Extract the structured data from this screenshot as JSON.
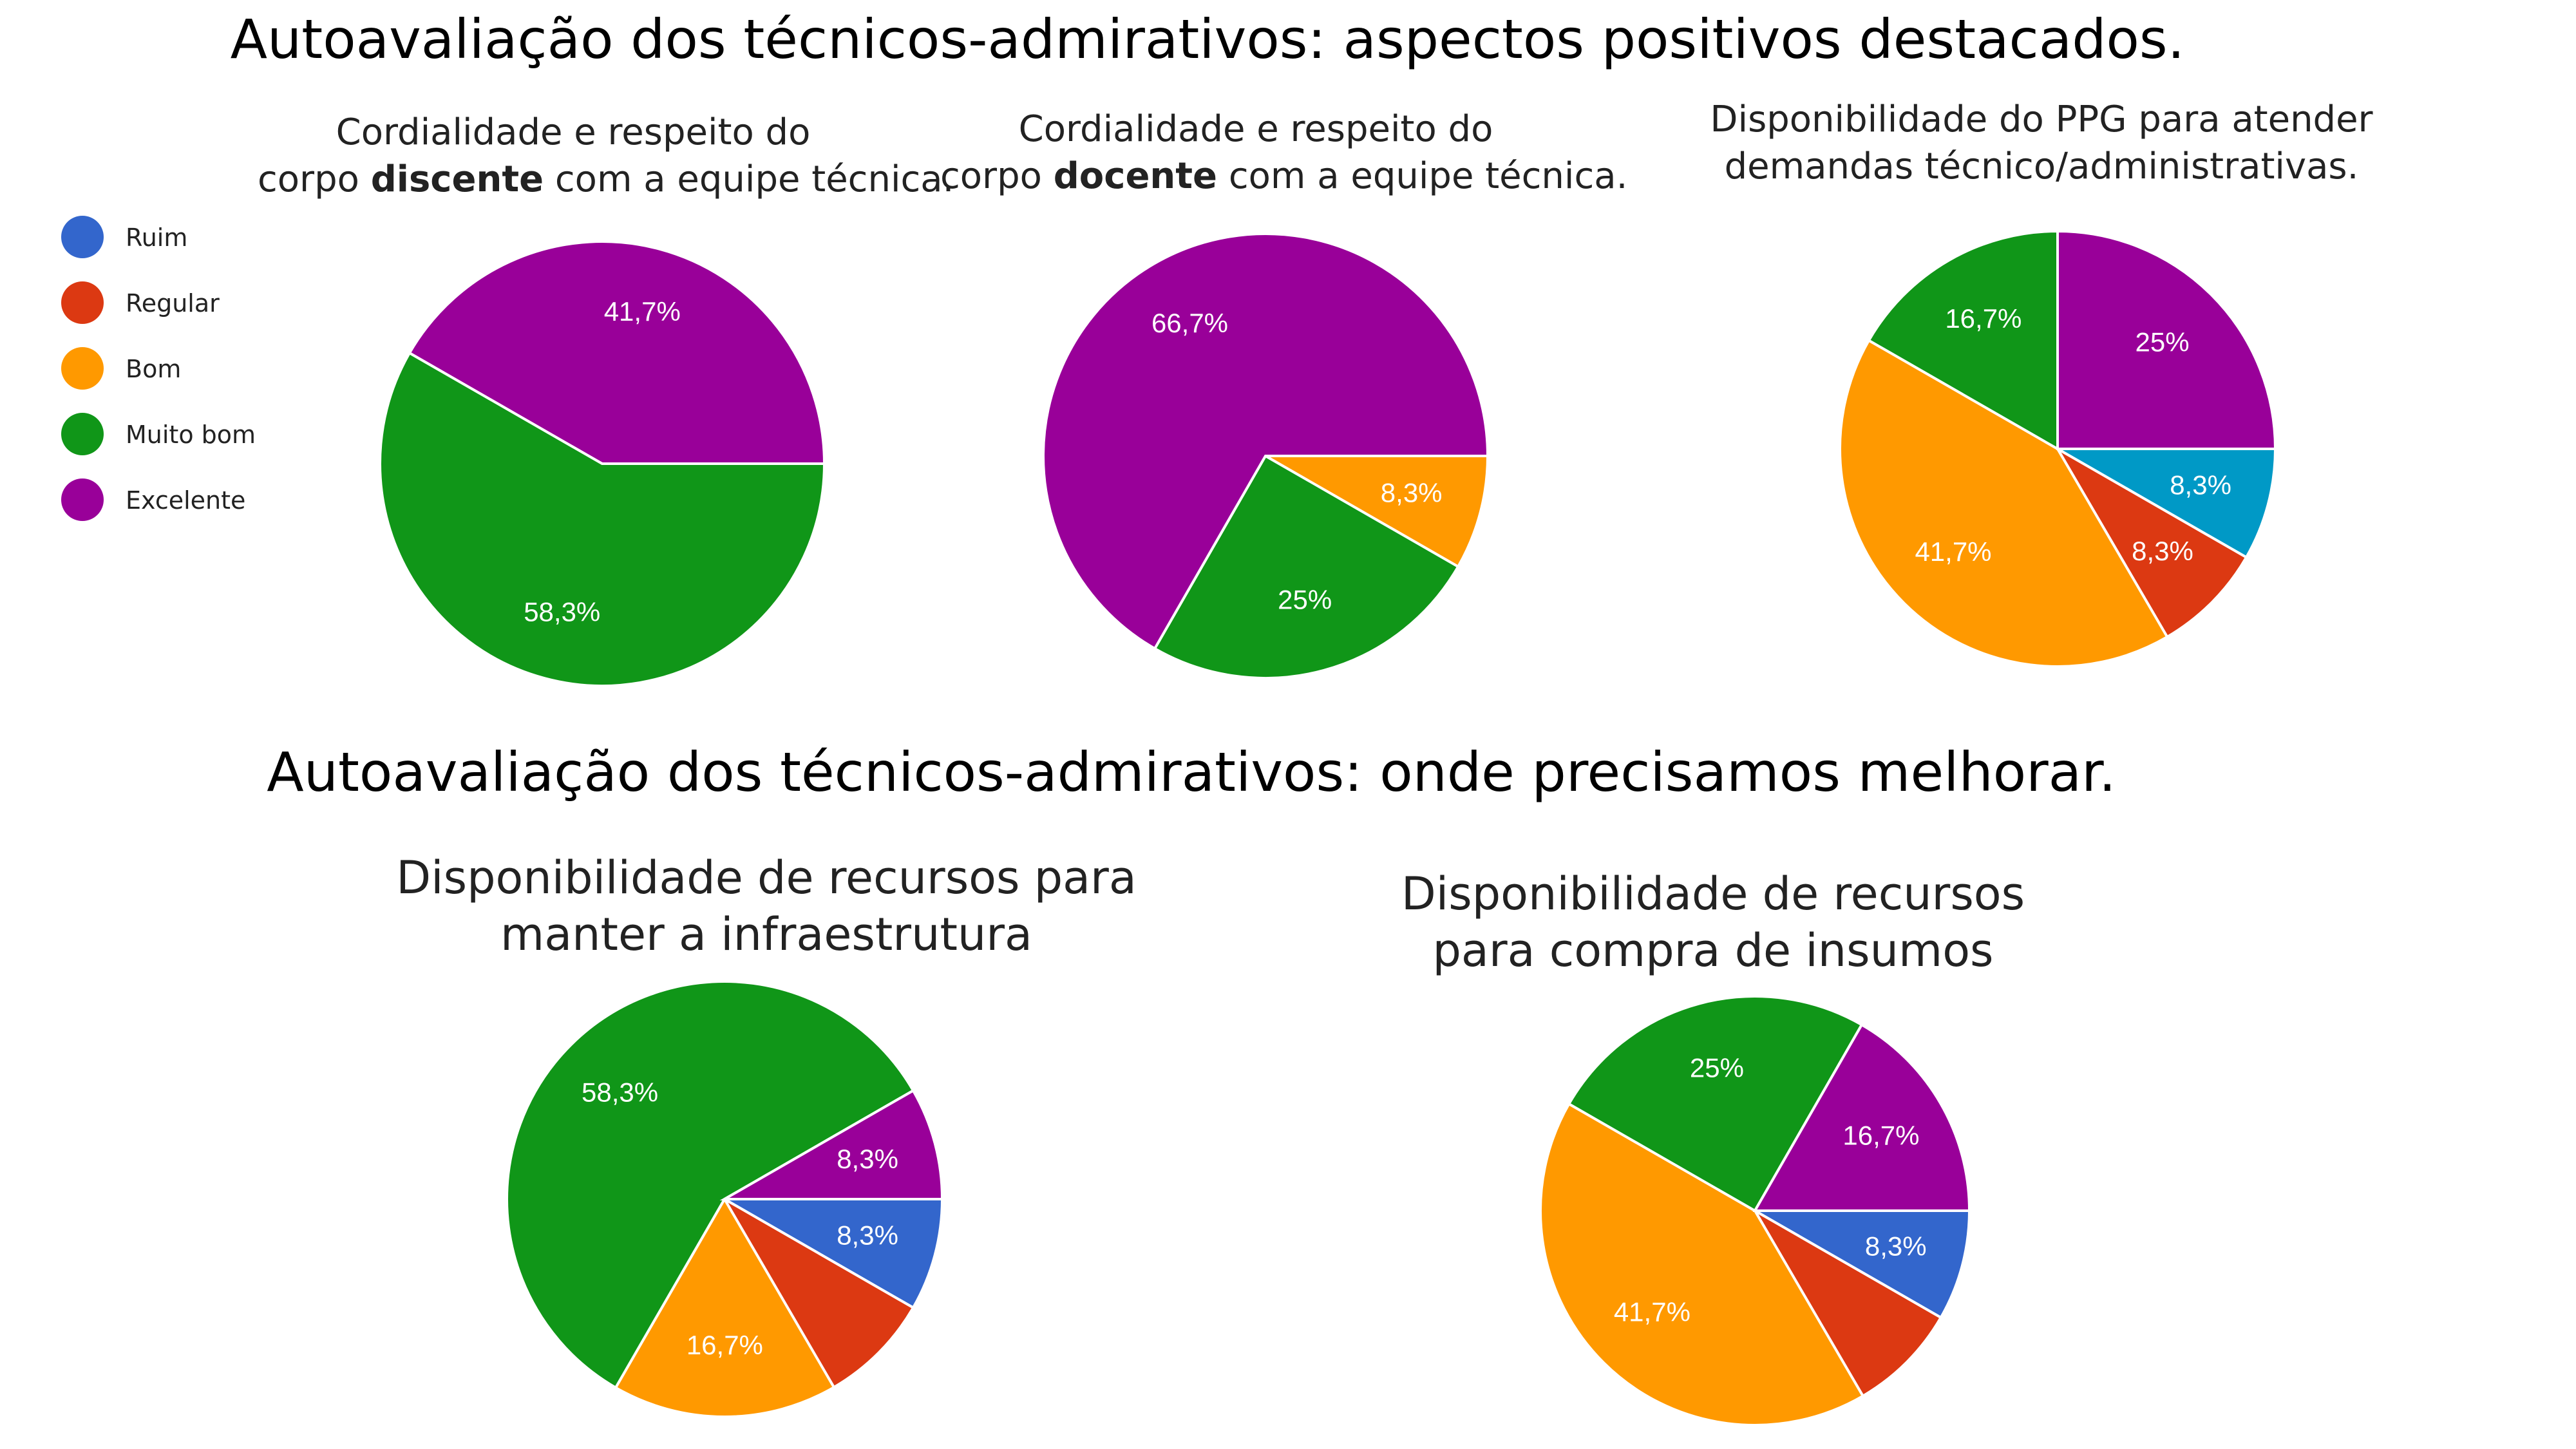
{
  "section_titles": [
    "Autoavaliação dos técnicos-admirativos: aspectos positivos destacados.",
    "Autoavaliação dos técnicos-admirativos: onde precisamos melhorar."
  ],
  "legend": [
    {
      "label": "Ruim",
      "color": "#3366cc"
    },
    {
      "label": "Regular",
      "color": "#dc3912"
    },
    {
      "label": "Bom",
      "color": "#ff9900"
    },
    {
      "label": "Muito bom",
      "color": "#109618"
    },
    {
      "label": "Excelente",
      "color": "#990099"
    }
  ],
  "titles": {
    "c1": {
      "pre1": "Cordialidade e respeito do",
      "pre2": "corpo ",
      "bold": "discente",
      "post": " com a equipe técnica."
    },
    "c2": {
      "pre1": "Cordialidade e respeito do",
      "pre2": "corpo ",
      "bold": "docente",
      "post": " com a equipe técnica."
    },
    "c3": {
      "line1": "Disponibilidade do PPG para atender",
      "line2": "demandas técnico/administrativas."
    },
    "c4": {
      "line1": "Disponibilidade de recursos para",
      "line2": "manter a infraestrutura"
    },
    "c5": {
      "line1": "Disponibilidade de recursos",
      "line2": "para compra de insumos"
    }
  },
  "chart_data": [
    {
      "type": "pie",
      "title": "Cordialidade e respeito do corpo discente com a equipe técnica.",
      "slices": [
        {
          "category": "Excelente",
          "value": 41.7,
          "label": "41,7%",
          "color": "#990099"
        },
        {
          "category": "Muito bom",
          "value": 58.3,
          "label": "58,3%",
          "color": "#109618"
        }
      ]
    },
    {
      "type": "pie",
      "title": "Cordialidade e respeito do corpo docente com a equipe técnica.",
      "slices": [
        {
          "category": "Bom",
          "value": 8.3,
          "label": "8,3%",
          "color": "#ff9900"
        },
        {
          "category": "Muito bom",
          "value": 25,
          "label": "25%",
          "color": "#109618"
        },
        {
          "category": "Excelente",
          "value": 66.7,
          "label": "66,7%",
          "color": "#990099"
        }
      ]
    },
    {
      "type": "pie",
      "title": "Disponibilidade do PPG para atender demandas técnico/administrativas.",
      "slices": [
        {
          "category": "Ruim",
          "value": 8.3,
          "label": "8,3%",
          "color": "#0099c6"
        },
        {
          "category": "Regular",
          "value": 8.3,
          "label": "8,3%",
          "color": "#dc3912"
        },
        {
          "category": "Bom",
          "value": 41.7,
          "label": "41,7%",
          "color": "#ff9900"
        },
        {
          "category": "Muito bom",
          "value": 16.7,
          "label": "16,7%",
          "color": "#109618"
        },
        {
          "category": "Excelente",
          "value": 25,
          "label": "25%",
          "color": "#990099"
        }
      ]
    },
    {
      "type": "pie",
      "title": "Disponibilidade de recursos para manter a infraestrutura",
      "slices": [
        {
          "category": "Ruim",
          "value": 8.3,
          "label": "8,3%",
          "color": "#3366cc"
        },
        {
          "category": "Regular",
          "value": 8.3,
          "label": "",
          "color": "#dc3912"
        },
        {
          "category": "Bom",
          "value": 16.7,
          "label": "16,7%",
          "color": "#ff9900"
        },
        {
          "category": "Muito bom",
          "value": 58.3,
          "label": "58,3%",
          "color": "#109618"
        },
        {
          "category": "Excelente",
          "value": 8.3,
          "label": "8,3%",
          "color": "#990099"
        }
      ]
    },
    {
      "type": "pie",
      "title": "Disponibilidade de recursos para compra de insumos",
      "slices": [
        {
          "category": "Ruim",
          "value": 8.3,
          "label": "8,3%",
          "color": "#3366cc"
        },
        {
          "category": "Regular",
          "value": 8.3,
          "label": "",
          "color": "#dc3912"
        },
        {
          "category": "Bom",
          "value": 41.7,
          "label": "41,7%",
          "color": "#ff9900"
        },
        {
          "category": "Muito bom",
          "value": 25,
          "label": "25%",
          "color": "#109618"
        },
        {
          "category": "Excelente",
          "value": 16.7,
          "label": "16,7%",
          "color": "#990099"
        }
      ]
    }
  ]
}
